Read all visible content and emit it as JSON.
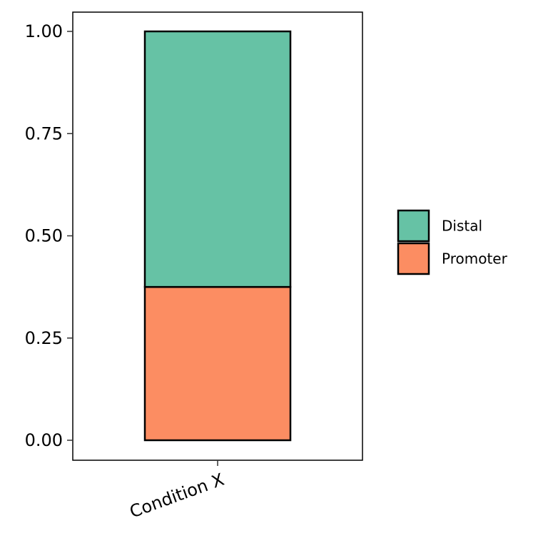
{
  "chart_data": {
    "type": "bar",
    "stacked": true,
    "categories": [
      "Condition X"
    ],
    "series": [
      {
        "name": "Promoter",
        "values": [
          0.375
        ],
        "color": "#FC8D62"
      },
      {
        "name": "Distal",
        "values": [
          0.625
        ],
        "color": "#66C2A5"
      }
    ],
    "ylim": [
      0,
      1
    ],
    "yticks": [
      "0.00",
      "0.25",
      "0.50",
      "0.75",
      "1.00"
    ],
    "yticks_values": [
      0,
      0.25,
      0.5,
      0.75,
      1.0
    ],
    "xlabel": "",
    "ylabel": "",
    "title": "",
    "legend": {
      "position": "right",
      "entries": [
        {
          "label": "Distal",
          "color": "#66C2A5"
        },
        {
          "label": "Promoter",
          "color": "#FC8D62"
        }
      ]
    },
    "grid": false
  }
}
